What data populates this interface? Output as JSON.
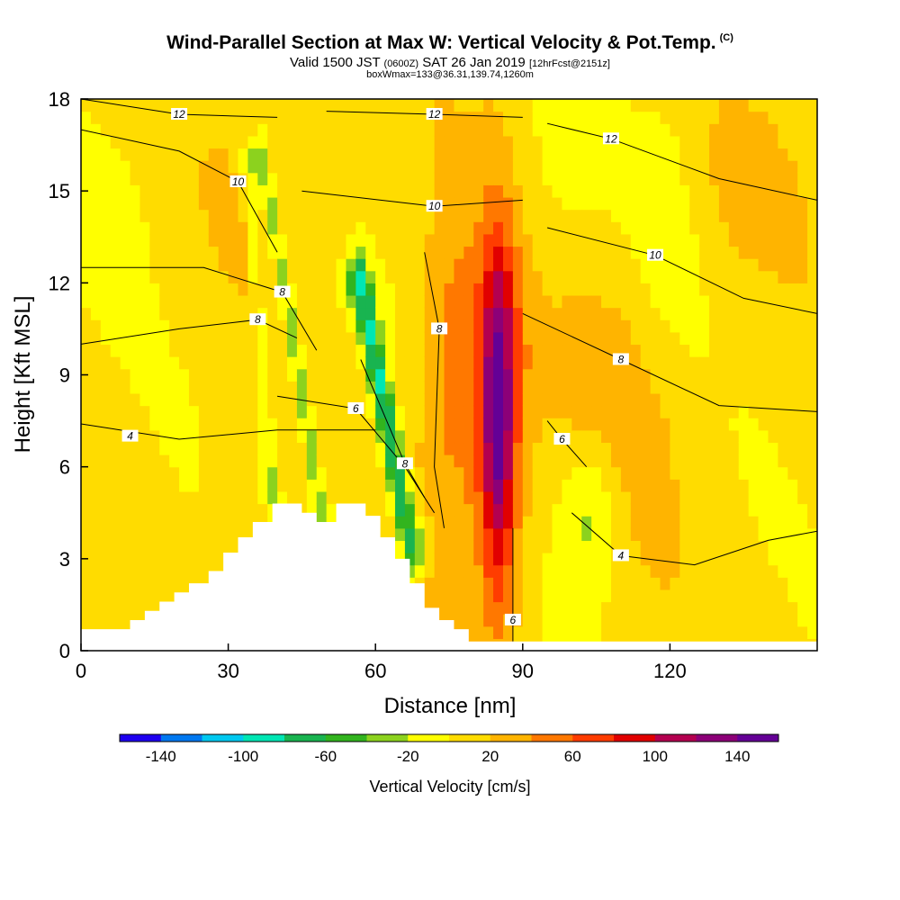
{
  "title": {
    "main": "Wind-Parallel Section at Max W: Vertical Velocity & Pot.Temp.",
    "copyright": "(C)",
    "valid": "Valid 1500 JST",
    "zulu": "(0600Z)",
    "date": "SAT 26 Jan 2019",
    "fcst": "[12hrFcst@2151z]",
    "box": "boxWmax=133@36.31,139.74,1260m"
  },
  "chart_data": {
    "type": "heatmap",
    "xlabel": "Distance [nm]",
    "ylabel": "Height [Kft MSL]",
    "xlim": [
      0,
      150
    ],
    "ylim": [
      0,
      18
    ],
    "xticks": [
      0,
      30,
      60,
      90,
      120
    ],
    "yticks": [
      0,
      3,
      6,
      9,
      12,
      15,
      18
    ],
    "colorbar": {
      "label": "Vertical Velocity [cm/s]",
      "ticks": [
        -140,
        -100,
        -60,
        -20,
        20,
        60,
        100,
        140
      ],
      "bounds": [
        -160,
        160
      ],
      "colors": [
        "#1e00f0",
        "#0078f0",
        "#00c8f0",
        "#00e6b4",
        "#19b450",
        "#32b41e",
        "#8cd21e",
        "#ffff00",
        "#ffdc00",
        "#ffb400",
        "#ff7800",
        "#ff3c00",
        "#e10000",
        "#b40050",
        "#8c0078",
        "#640096"
      ]
    },
    "features": [
      {
        "cx": 85,
        "cy": 8.0,
        "rx": 5.5,
        "ry": 7.0,
        "w": 80
      },
      {
        "cx": 85,
        "cy": 7.5,
        "rx": 2.8,
        "ry": 5.0,
        "w": 75
      },
      {
        "cx": 75,
        "cy": 9.0,
        "rx": 6.5,
        "ry": 6.0,
        "w": 45
      },
      {
        "cx": 112,
        "cy": 8.5,
        "rx": 14.0,
        "ry": 4.5,
        "w": 22
      },
      {
        "cx": 30,
        "cy": 5.0,
        "rx": 4.0,
        "ry": 3.5,
        "w": 22
      },
      {
        "cx": 104,
        "cy": 4.5,
        "rx": 6.0,
        "ry": 2.5,
        "w": -40
      },
      {
        "cx": 120,
        "cy": 14.0,
        "rx": 8.0,
        "ry": 5.0,
        "w": -22
      }
    ],
    "bands": [
      {
        "x0": 37,
        "y0": 16.0,
        "x1": 49,
        "y1": 4.5,
        "width": 2.2,
        "w": -50
      },
      {
        "x0": 57,
        "y0": 12.0,
        "x1": 67,
        "y1": 3.5,
        "width": 2.8,
        "w": -90
      },
      {
        "x0": 34,
        "y0": 16.0,
        "x1": 39,
        "y1": 5.0,
        "width": 1.8,
        "w": -30
      }
    ],
    "terrain": [
      [
        0,
        0.7
      ],
      [
        9,
        0.7
      ],
      [
        10,
        1.0
      ],
      [
        13,
        1.3
      ],
      [
        16,
        1.6
      ],
      [
        19,
        1.9
      ],
      [
        22,
        2.2
      ],
      [
        26,
        2.6
      ],
      [
        29,
        3.2
      ],
      [
        32,
        3.7
      ],
      [
        35,
        4.2
      ],
      [
        39,
        4.8
      ],
      [
        45,
        4.5
      ],
      [
        48,
        4.2
      ],
      [
        52,
        4.8
      ],
      [
        58,
        4.4
      ],
      [
        61,
        3.7
      ],
      [
        64,
        3.0
      ],
      [
        67,
        2.2
      ],
      [
        70,
        1.4
      ],
      [
        73,
        1.0
      ],
      [
        76,
        0.7
      ],
      [
        79,
        0.3
      ],
      [
        150,
        0.3
      ]
    ],
    "contours": [
      {
        "label": "4",
        "lx": 10,
        "ly": 7.0,
        "pts": [
          [
            0,
            7.4
          ],
          [
            20,
            6.9
          ],
          [
            40,
            7.2
          ],
          [
            60,
            7.2
          ]
        ]
      },
      {
        "label": "6",
        "lx": 56,
        "ly": 7.9,
        "pts": [
          [
            40,
            8.3
          ],
          [
            56,
            7.9
          ],
          [
            66,
            6.0
          ],
          [
            72,
            4.5
          ]
        ]
      },
      {
        "label": "8",
        "lx": 36,
        "ly": 10.8,
        "pts": [
          [
            0,
            10.0
          ],
          [
            20,
            10.5
          ],
          [
            36,
            10.8
          ],
          [
            44,
            10.2
          ]
        ]
      },
      {
        "label": "8",
        "lx": 41,
        "ly": 11.7,
        "pts": [
          [
            0,
            12.5
          ],
          [
            25,
            12.5
          ],
          [
            41,
            11.7
          ],
          [
            48,
            9.8
          ]
        ]
      },
      {
        "label": "8",
        "lx": 66,
        "ly": 6.1,
        "pts": [
          [
            57,
            9.5
          ],
          [
            66,
            6.1
          ],
          [
            70,
            5.0
          ]
        ]
      },
      {
        "label": "8",
        "lx": 73,
        "ly": 10.5,
        "pts": [
          [
            70,
            13.0
          ],
          [
            73,
            10.5
          ],
          [
            72,
            6.0
          ],
          [
            74,
            4.0
          ]
        ]
      },
      {
        "label": "6",
        "lx": 98,
        "ly": 6.9,
        "pts": [
          [
            95,
            7.5
          ],
          [
            98,
            6.9
          ],
          [
            103,
            6.0
          ]
        ]
      },
      {
        "label": "6",
        "lx": 88,
        "ly": 1.0,
        "pts": [
          [
            88,
            4.0
          ],
          [
            88,
            1.0
          ],
          [
            88,
            0.3
          ]
        ]
      },
      {
        "label": "4",
        "lx": 110,
        "ly": 3.1,
        "pts": [
          [
            100,
            4.5
          ],
          [
            110,
            3.1
          ],
          [
            125,
            2.8
          ],
          [
            140,
            3.6
          ],
          [
            150,
            3.9
          ]
        ]
      },
      {
        "label": "8",
        "lx": 110,
        "ly": 9.5,
        "pts": [
          [
            90,
            11.0
          ],
          [
            110,
            9.5
          ],
          [
            130,
            8.0
          ],
          [
            150,
            7.8
          ]
        ]
      },
      {
        "label": "10",
        "lx": 32,
        "ly": 15.3,
        "pts": [
          [
            0,
            17.0
          ],
          [
            20,
            16.3
          ],
          [
            32,
            15.3
          ],
          [
            40,
            13.0
          ]
        ]
      },
      {
        "label": "10",
        "lx": 72,
        "ly": 14.5,
        "pts": [
          [
            45,
            15.0
          ],
          [
            72,
            14.5
          ],
          [
            90,
            14.7
          ]
        ]
      },
      {
        "label": "10",
        "lx": 117,
        "ly": 12.9,
        "pts": [
          [
            95,
            13.8
          ],
          [
            117,
            12.9
          ],
          [
            135,
            11.5
          ],
          [
            150,
            11.0
          ]
        ]
      },
      {
        "label": "12",
        "lx": 20,
        "ly": 17.5,
        "pts": [
          [
            0,
            18.0
          ],
          [
            20,
            17.5
          ],
          [
            40,
            17.4
          ]
        ]
      },
      {
        "label": "12",
        "lx": 72,
        "ly": 17.5,
        "pts": [
          [
            50,
            17.6
          ],
          [
            72,
            17.5
          ],
          [
            90,
            17.4
          ]
        ]
      },
      {
        "label": "12",
        "lx": 108,
        "ly": 16.7,
        "pts": [
          [
            95,
            17.2
          ],
          [
            108,
            16.7
          ],
          [
            130,
            15.4
          ],
          [
            150,
            14.7
          ]
        ]
      }
    ]
  }
}
